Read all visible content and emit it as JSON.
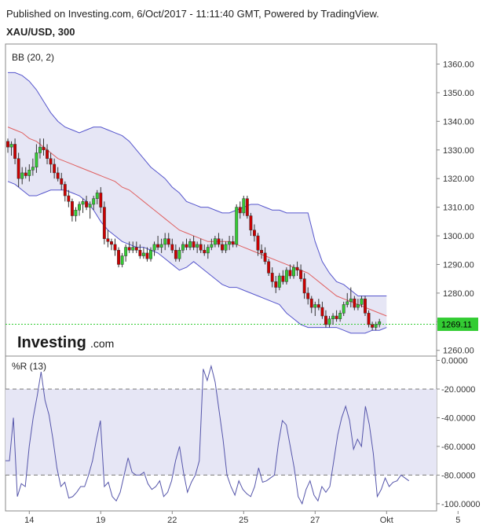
{
  "header": {
    "published": "Published on Investing.com, 6/Oct/2017 - 11:11:40 GMT, Powered by TradingView.",
    "symbol": "XAU/USD, 300"
  },
  "logo": {
    "text_main": "Investing",
    "text_suffix": ".com"
  },
  "colors": {
    "up": "#33cc33",
    "down": "#cc0000",
    "bb_fill": "#e6e6f5",
    "bb_band": "#5555cc",
    "bb_basis": "#e06060",
    "wr_line": "#5555aa",
    "last_price_bg": "#33cc33"
  },
  "chart_data": [
    {
      "type": "candlestick",
      "indicator_label": "BB (20, 2)",
      "price_scale": [
        "1360.00",
        "1350.00",
        "1340.00",
        "1330.00",
        "1320.00",
        "1310.00",
        "1300.00",
        "1290.00",
        "1280.00",
        "1270.00",
        "1260.00"
      ],
      "ylim": [
        1258,
        1367
      ],
      "last_price": "1269.11",
      "time_labels": [
        {
          "label": "14",
          "bar": 6
        },
        {
          "label": "19",
          "bar": 26
        },
        {
          "label": "22",
          "bar": 46
        },
        {
          "label": "25",
          "bar": 66
        },
        {
          "label": "27",
          "bar": 86
        },
        {
          "label": "Okt",
          "bar": 106
        },
        {
          "label": "5",
          "bar": 126
        }
      ],
      "candles": [
        [
          1333,
          1334,
          1329,
          1331
        ],
        [
          1331,
          1333,
          1328,
          1332
        ],
        [
          1332,
          1334,
          1325,
          1327
        ],
        [
          1327,
          1329,
          1317,
          1320
        ],
        [
          1320,
          1324,
          1318,
          1322
        ],
        [
          1322,
          1324,
          1320,
          1321
        ],
        [
          1321,
          1325,
          1319,
          1323
        ],
        [
          1323,
          1327,
          1321,
          1324
        ],
        [
          1324,
          1332,
          1322,
          1329
        ],
        [
          1329,
          1334,
          1327,
          1331
        ],
        [
          1331,
          1334,
          1328,
          1330
        ],
        [
          1330,
          1332,
          1325,
          1327
        ],
        [
          1327,
          1329,
          1322,
          1325
        ],
        [
          1325,
          1327,
          1320,
          1322
        ],
        [
          1322,
          1324,
          1319,
          1320
        ],
        [
          1320,
          1322,
          1316,
          1318
        ],
        [
          1318,
          1319,
          1312,
          1314
        ],
        [
          1314,
          1316,
          1310,
          1312
        ],
        [
          1312,
          1313,
          1305,
          1307
        ],
        [
          1307,
          1310,
          1305,
          1309
        ],
        [
          1309,
          1312,
          1307,
          1311
        ],
        [
          1311,
          1313,
          1308,
          1312
        ],
        [
          1312,
          1314,
          1309,
          1310
        ],
        [
          1310,
          1312,
          1306,
          1311
        ],
        [
          1311,
          1314,
          1309,
          1313
        ],
        [
          1313,
          1316,
          1311,
          1315
        ],
        [
          1315,
          1317,
          1308,
          1310
        ],
        [
          1310,
          1312,
          1297,
          1299
        ],
        [
          1299,
          1302,
          1296,
          1298
        ],
        [
          1298,
          1299,
          1295,
          1297
        ],
        [
          1297,
          1299,
          1293,
          1295
        ],
        [
          1295,
          1296,
          1289,
          1290
        ],
        [
          1290,
          1294,
          1289,
          1293
        ],
        [
          1293,
          1297,
          1291,
          1296
        ],
        [
          1296,
          1298,
          1294,
          1295
        ],
        [
          1295,
          1298,
          1294,
          1296
        ],
        [
          1296,
          1298,
          1294,
          1295
        ],
        [
          1295,
          1297,
          1292,
          1293
        ],
        [
          1293,
          1296,
          1292,
          1294
        ],
        [
          1294,
          1296,
          1291,
          1292
        ],
        [
          1292,
          1296,
          1291,
          1295
        ],
        [
          1295,
          1298,
          1293,
          1297
        ],
        [
          1297,
          1300,
          1295,
          1296
        ],
        [
          1296,
          1299,
          1294,
          1297
        ],
        [
          1297,
          1301,
          1295,
          1299
        ],
        [
          1299,
          1301,
          1296,
          1297
        ],
        [
          1297,
          1299,
          1294,
          1295
        ],
        [
          1295,
          1297,
          1291,
          1292
        ],
        [
          1292,
          1296,
          1291,
          1295
        ],
        [
          1295,
          1298,
          1294,
          1297
        ],
        [
          1297,
          1299,
          1295,
          1296
        ],
        [
          1296,
          1299,
          1295,
          1298
        ],
        [
          1298,
          1300,
          1295,
          1296
        ],
        [
          1296,
          1298,
          1294,
          1297
        ],
        [
          1297,
          1299,
          1294,
          1295
        ],
        [
          1295,
          1297,
          1293,
          1294
        ],
        [
          1294,
          1297,
          1292,
          1296
        ],
        [
          1296,
          1299,
          1295,
          1297
        ],
        [
          1297,
          1300,
          1296,
          1299
        ],
        [
          1299,
          1301,
          1296,
          1297
        ],
        [
          1297,
          1299,
          1294,
          1295
        ],
        [
          1295,
          1298,
          1294,
          1297
        ],
        [
          1297,
          1300,
          1295,
          1298
        ],
        [
          1298,
          1300,
          1296,
          1297
        ],
        [
          1297,
          1311,
          1296,
          1310
        ],
        [
          1310,
          1312,
          1306,
          1308
        ],
        [
          1308,
          1314,
          1307,
          1313
        ],
        [
          1313,
          1314,
          1306,
          1307
        ],
        [
          1307,
          1308,
          1300,
          1302
        ],
        [
          1302,
          1304,
          1298,
          1300
        ],
        [
          1300,
          1301,
          1293,
          1295
        ],
        [
          1295,
          1297,
          1292,
          1294
        ],
        [
          1294,
          1296,
          1290,
          1291
        ],
        [
          1291,
          1292,
          1286,
          1287
        ],
        [
          1287,
          1289,
          1282,
          1284
        ],
        [
          1284,
          1286,
          1280,
          1282
        ],
        [
          1282,
          1287,
          1281,
          1286
        ],
        [
          1286,
          1288,
          1283,
          1284
        ],
        [
          1284,
          1289,
          1283,
          1288
        ],
        [
          1288,
          1290,
          1285,
          1286
        ],
        [
          1286,
          1290,
          1285,
          1289
        ],
        [
          1289,
          1291,
          1286,
          1288
        ],
        [
          1288,
          1290,
          1284,
          1285
        ],
        [
          1285,
          1287,
          1278,
          1280
        ],
        [
          1280,
          1282,
          1276,
          1278
        ],
        [
          1278,
          1279,
          1273,
          1275
        ],
        [
          1275,
          1277,
          1272,
          1276
        ],
        [
          1276,
          1278,
          1274,
          1275
        ],
        [
          1275,
          1277,
          1271,
          1272
        ],
        [
          1272,
          1274,
          1268,
          1269
        ],
        [
          1269,
          1272,
          1268,
          1271
        ],
        [
          1271,
          1273,
          1269,
          1272
        ],
        [
          1272,
          1274,
          1270,
          1271
        ],
        [
          1271,
          1274,
          1270,
          1273
        ],
        [
          1273,
          1277,
          1272,
          1276
        ],
        [
          1276,
          1280,
          1275,
          1277
        ],
        [
          1277,
          1282,
          1275,
          1278
        ],
        [
          1278,
          1279,
          1274,
          1275
        ],
        [
          1275,
          1278,
          1274,
          1276
        ],
        [
          1276,
          1279,
          1275,
          1278
        ],
        [
          1278,
          1279,
          1272,
          1273
        ],
        [
          1273,
          1274,
          1268,
          1269
        ],
        [
          1269,
          1270,
          1267,
          1268
        ],
        [
          1268,
          1270,
          1267,
          1269
        ],
        [
          1269,
          1271,
          1268,
          1270
        ]
      ],
      "bb_upper": [
        1357,
        1357,
        1356,
        1354,
        1351,
        1347,
        1343,
        1340,
        1338,
        1337,
        1336,
        1337,
        1338,
        1338,
        1337,
        1336,
        1335,
        1333,
        1330,
        1327,
        1324,
        1322,
        1320,
        1317,
        1315,
        1312,
        1311,
        1310,
        1310,
        1309,
        1308,
        1308,
        1309,
        1310,
        1311,
        1311,
        1310,
        1309,
        1309,
        1308,
        1308,
        1308,
        1308,
        1298,
        1291,
        1287,
        1284,
        1283,
        1281,
        1279,
        1279,
        1279,
        1279,
        1279
      ],
      "bb_basis": [
        1338,
        1337,
        1336,
        1334,
        1333,
        1331,
        1329,
        1327,
        1326,
        1325,
        1324,
        1323,
        1322,
        1321,
        1320,
        1319,
        1317,
        1316,
        1314,
        1312,
        1310,
        1308,
        1306,
        1304,
        1302,
        1301,
        1300,
        1299,
        1298,
        1298,
        1298,
        1298,
        1297,
        1296,
        1295,
        1294,
        1293,
        1292,
        1291,
        1290,
        1289,
        1288,
        1287,
        1285,
        1283,
        1281,
        1279,
        1278,
        1277,
        1276,
        1275,
        1274,
        1273,
        1272
      ],
      "bb_lower": [
        1319,
        1318,
        1316,
        1314,
        1314,
        1315,
        1316,
        1316,
        1316,
        1315,
        1314,
        1312,
        1309,
        1305,
        1302,
        1300,
        1298,
        1297,
        1296,
        1296,
        1295,
        1294,
        1292,
        1290,
        1288,
        1289,
        1291,
        1289,
        1287,
        1285,
        1283,
        1282,
        1282,
        1281,
        1280,
        1279,
        1278,
        1277,
        1276,
        1273,
        1271,
        1269,
        1268,
        1268,
        1268,
        1268,
        1268,
        1267,
        1266,
        1266,
        1266,
        1267,
        1267,
        1268
      ]
    },
    {
      "type": "line",
      "indicator_label": "%R (13)",
      "scale": [
        "0.0000",
        "-20.0000",
        "-40.0000",
        "-60.0000",
        "-80.0000",
        "-100.0000"
      ],
      "ylim": [
        -105,
        3
      ],
      "levels": [
        -20,
        -80
      ],
      "values": [
        -70,
        -70,
        -40,
        -95,
        -86,
        -88,
        -60,
        -40,
        -25,
        -8,
        -28,
        -38,
        -55,
        -75,
        -88,
        -85,
        -96,
        -95,
        -92,
        -88,
        -88,
        -80,
        -70,
        -55,
        -42,
        -88,
        -85,
        -95,
        -98,
        -92,
        -80,
        -68,
        -78,
        -80,
        -80,
        -78,
        -86,
        -90,
        -88,
        -84,
        -95,
        -92,
        -84,
        -70,
        -60,
        -78,
        -92,
        -85,
        -80,
        -70,
        -6,
        -14,
        -4,
        -15,
        -35,
        -55,
        -80,
        -88,
        -94,
        -84,
        -90,
        -93,
        -95,
        -88,
        -75,
        -85,
        -84,
        -82,
        -80,
        -58,
        -42,
        -45,
        -60,
        -75,
        -95,
        -100,
        -90,
        -84,
        -94,
        -98,
        -88,
        -92,
        -88,
        -70,
        -52,
        -40,
        -32,
        -42,
        -62,
        -55,
        -60,
        -32,
        -45,
        -65,
        -95,
        -90,
        -82,
        -88,
        -85,
        -84,
        -80,
        -82,
        -84
      ]
    }
  ]
}
